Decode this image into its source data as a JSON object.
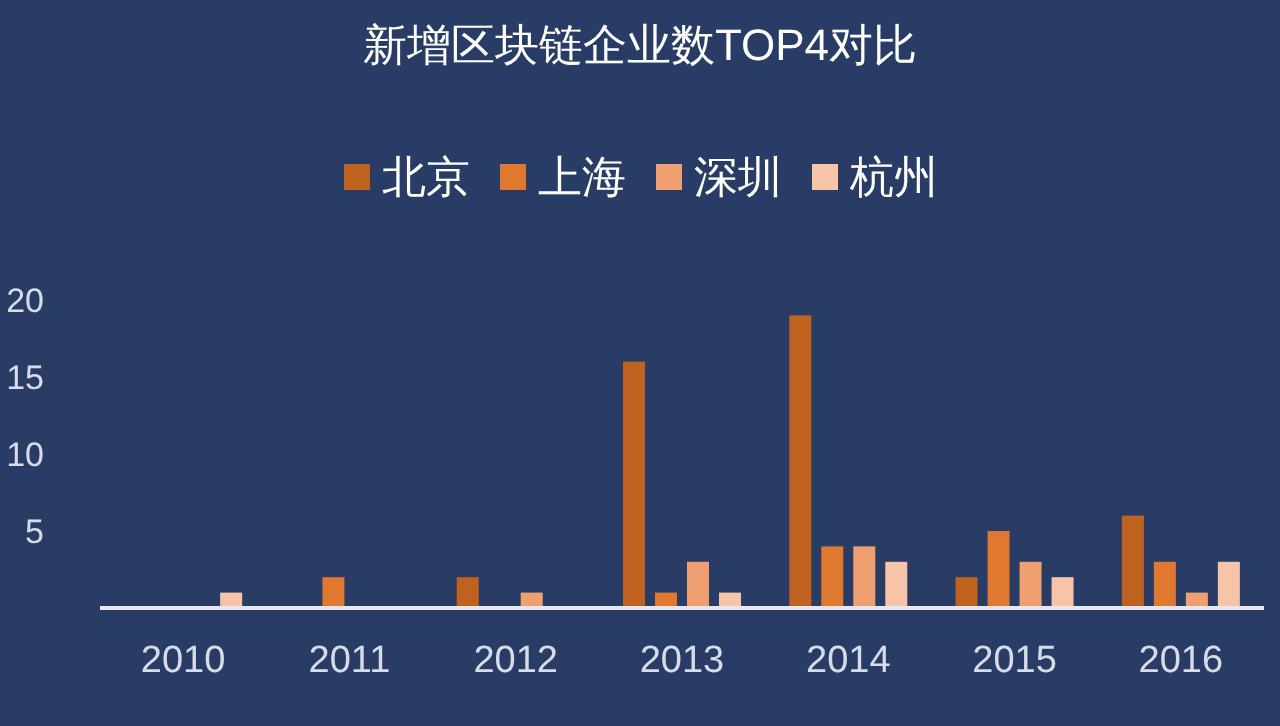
{
  "chart_data": {
    "type": "bar",
    "title": "新增区块链企业数TOP4对比",
    "categories": [
      "2010",
      "2011",
      "2012",
      "2013",
      "2014",
      "2015",
      "2016"
    ],
    "series": [
      {
        "name": "北京",
        "color": "#c0621f",
        "values": [
          0,
          0,
          2,
          16,
          19,
          2,
          6
        ]
      },
      {
        "name": "上海",
        "color": "#e07830",
        "values": [
          0,
          2,
          0,
          1,
          4,
          5,
          3
        ]
      },
      {
        "name": "深圳",
        "color": "#f0a070",
        "values": [
          0,
          0,
          1,
          3,
          4,
          3,
          1
        ]
      },
      {
        "name": "杭州",
        "color": "#f8c4a8",
        "values": [
          1,
          0,
          0,
          1,
          3,
          2,
          3
        ]
      }
    ],
    "ylim": [
      0,
      20
    ],
    "yticks": [
      5,
      10,
      15,
      20
    ],
    "legend": "top",
    "grid": false
  }
}
